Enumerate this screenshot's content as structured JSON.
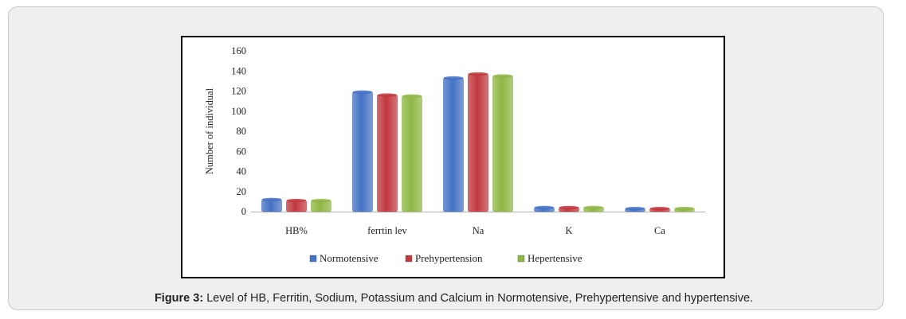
{
  "caption": {
    "label": "Figure 3:",
    "text": "Level of HB, Ferritin, Sodium, Potassium and Calcium in Normotensive, Prehypertensive and hypertensive."
  },
  "chart_data": {
    "type": "bar",
    "categories": [
      "HB%",
      "ferrtin lev",
      "Na",
      "K",
      "Ca"
    ],
    "series": [
      {
        "name": "Normotensive",
        "values": [
          12,
          119,
          133,
          4,
          3
        ],
        "color": "#4472c4"
      },
      {
        "name": "Prehypertension",
        "values": [
          11,
          116,
          137,
          4,
          3
        ],
        "color": "#c0393f"
      },
      {
        "name": "Hepertensive",
        "values": [
          11,
          115,
          135,
          4,
          3
        ],
        "color": "#8fb744"
      }
    ],
    "ylabel": "Number of individual",
    "ylim": [
      0,
      160
    ],
    "yticks": [
      0,
      20,
      40,
      60,
      80,
      100,
      120,
      140,
      160
    ],
    "grid": false,
    "legend": "bottom"
  }
}
